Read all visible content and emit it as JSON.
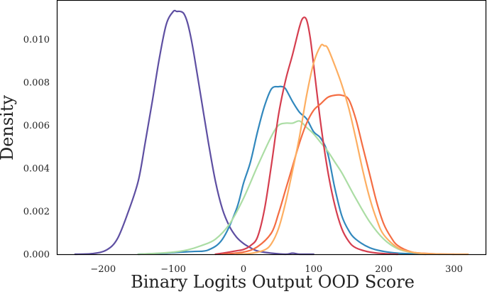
{
  "chart_data": {
    "type": "line",
    "title": "",
    "xlabel": "Binary Logits Output OOD Score",
    "ylabel": "Density",
    "xlim": [
      -265,
      345
    ],
    "ylim": [
      0,
      0.0118
    ],
    "grid": false,
    "x_ticks": [
      {
        "value": -200,
        "label": "−200"
      },
      {
        "value": -100,
        "label": "−100"
      },
      {
        "value": 0,
        "label": "0"
      },
      {
        "value": 100,
        "label": "100"
      },
      {
        "value": 200,
        "label": "200"
      },
      {
        "value": 300,
        "label": "300"
      }
    ],
    "y_ticks": [
      {
        "value": 0,
        "label": "0.000"
      },
      {
        "value": 0.002,
        "label": "0.002"
      },
      {
        "value": 0.004,
        "label": "0.004"
      },
      {
        "value": 0.006,
        "label": "0.006"
      },
      {
        "value": 0.008,
        "label": "0.008"
      },
      {
        "value": 0.01,
        "label": "0.010"
      }
    ],
    "series": [
      {
        "color": "#5e4fa2",
        "x": [
          -240,
          -215,
          -195,
          -180,
          -165,
          -150,
          -140,
          -130,
          -120,
          -110,
          -100,
          -95,
          -90,
          -85,
          -80,
          -75,
          -70,
          -60,
          -50,
          -40,
          -30,
          -20,
          -10,
          0,
          10,
          20,
          40,
          60,
          70,
          80,
          100
        ],
        "y": [
          0.0,
          3e-05,
          0.0002,
          0.0007,
          0.0019,
          0.0034,
          0.0052,
          0.0071,
          0.0091,
          0.0107,
          0.0113,
          0.0113,
          0.0113,
          0.0112,
          0.0108,
          0.0101,
          0.0092,
          0.0072,
          0.0052,
          0.0034,
          0.0021,
          0.0013,
          0.0008,
          0.0005,
          0.0003,
          0.00015,
          5e-05,
          0.0,
          5e-05,
          0.0,
          0.0
        ]
      },
      {
        "color": "#3288bd",
        "x": [
          -150,
          -110,
          -90,
          -70,
          -50,
          -30,
          -10,
          0,
          10,
          20,
          30,
          40,
          50,
          55,
          60,
          70,
          80,
          90,
          100,
          110,
          120,
          130,
          140,
          150,
          160,
          180,
          200,
          220,
          240,
          260
        ],
        "y": [
          0.0,
          5e-05,
          0.0001,
          0.00013,
          0.0002,
          0.0007,
          0.0021,
          0.0033,
          0.0043,
          0.0057,
          0.0069,
          0.0077,
          0.0078,
          0.0078,
          0.0077,
          0.0071,
          0.0066,
          0.0063,
          0.0057,
          0.0054,
          0.0047,
          0.0031,
          0.0018,
          0.0011,
          0.0007,
          0.0003,
          0.00013,
          5e-05,
          2e-05,
          0.0
        ]
      },
      {
        "color": "#abdda4",
        "x": [
          -150,
          -120,
          -100,
          -80,
          -60,
          -40,
          -20,
          0,
          20,
          40,
          50,
          60,
          70,
          80,
          90,
          100,
          110,
          120,
          130,
          140,
          150,
          160,
          180,
          200,
          220,
          240,
          260,
          280
        ],
        "y": [
          0.0,
          5e-05,
          0.0001,
          0.0002,
          0.0004,
          0.0007,
          0.0014,
          0.0026,
          0.0041,
          0.0055,
          0.006,
          0.0061,
          0.0061,
          0.0062,
          0.0059,
          0.0056,
          0.0052,
          0.0048,
          0.0043,
          0.0038,
          0.0032,
          0.0026,
          0.0015,
          0.0007,
          0.00025,
          8e-05,
          2e-05,
          0.0
        ]
      },
      {
        "color": "#d53e4f",
        "x": [
          -40,
          -20,
          -10,
          0,
          10,
          20,
          30,
          40,
          50,
          60,
          70,
          80,
          85,
          90,
          95,
          100,
          110,
          120,
          130,
          140,
          150,
          160,
          180,
          200,
          220
        ],
        "y": [
          0.0,
          0.0001,
          0.00016,
          0.00022,
          0.0004,
          0.0008,
          0.0021,
          0.0042,
          0.0065,
          0.0081,
          0.0093,
          0.0106,
          0.011,
          0.0109,
          0.0101,
          0.0088,
          0.0061,
          0.0039,
          0.0023,
          0.0012,
          0.0006,
          0.0003,
          0.0001,
          3e-05,
          0.0
        ]
      },
      {
        "color": "#f46d43",
        "x": [
          -30,
          0,
          20,
          40,
          50,
          60,
          70,
          80,
          90,
          100,
          110,
          120,
          130,
          140,
          150,
          160,
          170,
          180,
          190,
          200,
          210,
          220,
          240,
          260,
          280,
          300
        ],
        "y": [
          0.0,
          0.0001,
          0.00035,
          0.001,
          0.0019,
          0.003,
          0.0041,
          0.0052,
          0.0061,
          0.0067,
          0.007,
          0.0073,
          0.0074,
          0.0074,
          0.0072,
          0.0063,
          0.005,
          0.0037,
          0.0024,
          0.0014,
          0.0008,
          0.0004,
          0.0001,
          4e-05,
          1e-05,
          0.0
        ]
      },
      {
        "color": "#fdae61",
        "x": [
          -10,
          10,
          30,
          40,
          50,
          60,
          70,
          80,
          90,
          100,
          110,
          115,
          120,
          130,
          140,
          150,
          160,
          170,
          180,
          190,
          200,
          220,
          240,
          260,
          280,
          300,
          320
        ],
        "y": [
          0.0,
          4e-05,
          0.0002,
          0.0005,
          0.0012,
          0.0024,
          0.0039,
          0.0055,
          0.0074,
          0.0089,
          0.0097,
          0.0097,
          0.0096,
          0.0088,
          0.0079,
          0.0068,
          0.0054,
          0.0039,
          0.0026,
          0.0016,
          0.0009,
          0.0003,
          0.0001,
          3e-05,
          1e-05,
          0.0,
          0.0
        ]
      }
    ]
  }
}
